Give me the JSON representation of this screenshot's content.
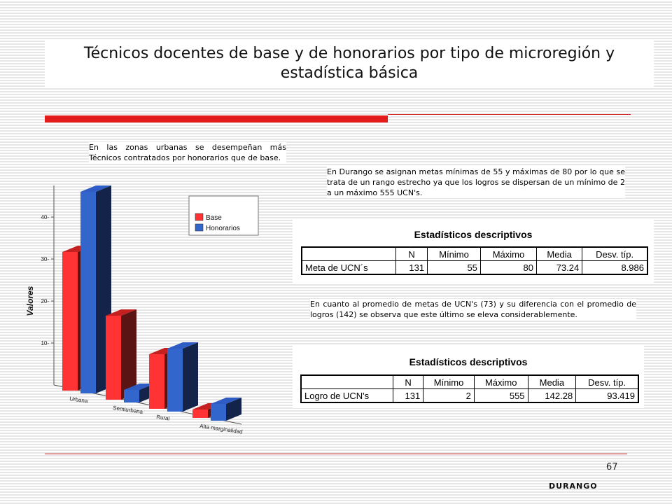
{
  "slide": {
    "title": "Técnicos docentes de base y de honorarios por tipo de microregión y estadística básica",
    "page_number": "67",
    "footer": "DURANGO"
  },
  "notes": {
    "note1": "En las zonas urbanas se desempeñan más Técnicos contratados por honorarios que de base.",
    "note2": "En Durango se asignan metas mínimas de 55 y máximas de 80 por lo que se trata de un rango estrecho ya que los logros se dispersan de un mínimo de 2 a un máximo 555 UCN's.",
    "note3": "En cuanto al  promedio de metas de UCN's (73) y su diferencia con el promedio de logros (142) se observa que este último se eleva considerablemente."
  },
  "stats1": {
    "title": "Estadísticos descriptivos",
    "headers": [
      "N",
      "Mínimo",
      "Máximo",
      "Media",
      "Desv. típ."
    ],
    "row_label": "Meta de UCN´s",
    "values": [
      "131",
      "55",
      "80",
      "73.24",
      "8.986"
    ]
  },
  "stats2": {
    "title": "Estadísticos descriptivos",
    "headers": [
      "N",
      "Mínimo",
      "Máximo",
      "Media",
      "Desv. típ."
    ],
    "row_label": "Logro de UCN's",
    "values": [
      "131",
      "2",
      "555",
      "142.28",
      "93.419"
    ]
  },
  "chart_data": {
    "type": "bar",
    "title": "",
    "ylabel": "Valores",
    "xlabel": "",
    "yticks": [
      "10",
      "20",
      "30",
      "40"
    ],
    "ylim": [
      0,
      45
    ],
    "categories": [
      "Urbana",
      "Semiurbana",
      "Rural",
      "Alta marginalidad"
    ],
    "series": [
      {
        "name": "Base",
        "values": [
          33,
          20,
          13,
          2
        ],
        "color": "#ff3333"
      },
      {
        "name": "Honorarios",
        "values": [
          48,
          3,
          15,
          4
        ],
        "color": "#3366cc"
      }
    ],
    "legend_position": "top-right"
  },
  "colors": {
    "accent_red": "#e31b1b",
    "base_front": "#ff3333",
    "base_top": "#c42020",
    "base_side": "#5a1414",
    "hon_front": "#3366cc",
    "hon_top": "#2e5cc4",
    "hon_side": "#14234a"
  }
}
